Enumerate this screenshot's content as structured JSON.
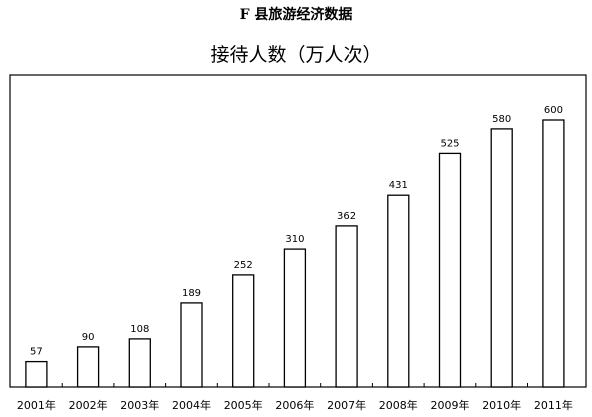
{
  "page": {
    "title": "F 县旅游经济数据"
  },
  "chart_data": {
    "type": "bar",
    "title": "接待人数（万人次）",
    "xlabel": "",
    "ylabel": "",
    "categories": [
      "2001年",
      "2002年",
      "2003年",
      "2004年",
      "2005年",
      "2006年",
      "2007年",
      "2008年",
      "2009年",
      "2010年",
      "2011年"
    ],
    "values": [
      57,
      90,
      108,
      189,
      252,
      310,
      362,
      431,
      525,
      580,
      600
    ],
    "ylim": [
      0,
      650
    ],
    "grid": false,
    "legend": "none",
    "bar_fill": "#ffffff",
    "bar_stroke": "#000000"
  }
}
